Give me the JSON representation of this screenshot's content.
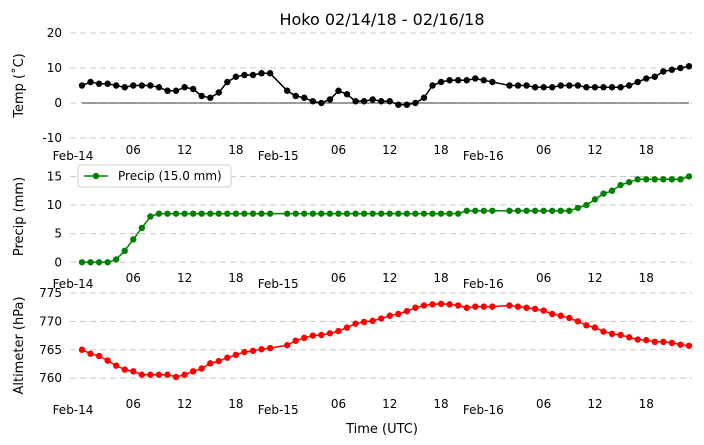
{
  "title": "Hoko 02/14/18 - 02/16/18",
  "xlabel": "Time (UTC)",
  "x_tick_labels": [
    "Feb-14",
    "06",
    "12",
    "18",
    "Feb-15",
    "06",
    "12",
    "18",
    "Feb-16",
    "06",
    "12",
    "18"
  ],
  "chart_data": [
    {
      "type": "line",
      "ylabel": "Temp (˚C)",
      "ylim": [
        -10,
        20
      ],
      "yticks": [
        -10,
        0,
        10,
        20
      ],
      "color": "#000000",
      "grid": "horizontal dashed",
      "zero_line": true,
      "x_hours": [
        0,
        1,
        2,
        3,
        4,
        5,
        6,
        7,
        8,
        9,
        10,
        11,
        12,
        13,
        14,
        15,
        16,
        17,
        18,
        19,
        20,
        21,
        22,
        24,
        25,
        26,
        27,
        28,
        29,
        30,
        31,
        32,
        33,
        34,
        35,
        36,
        37,
        38,
        39,
        40,
        41,
        42,
        43,
        44,
        45,
        46,
        47,
        48,
        50,
        51,
        52,
        53,
        54,
        55,
        56,
        57,
        58,
        59,
        60,
        61,
        62,
        63,
        64,
        65,
        66,
        67,
        68,
        69,
        70,
        71
      ],
      "values": [
        5.0,
        6.0,
        5.5,
        5.5,
        5.0,
        4.5,
        5.0,
        5.0,
        5.0,
        4.5,
        3.5,
        3.5,
        4.5,
        4.0,
        2.0,
        1.5,
        3.0,
        6.0,
        7.5,
        8.0,
        8.0,
        8.5,
        8.5,
        3.5,
        2.0,
        1.5,
        0.5,
        0.0,
        1.0,
        3.5,
        2.5,
        0.5,
        0.5,
        1.0,
        0.5,
        0.5,
        -0.5,
        -0.5,
        0.0,
        1.5,
        5.0,
        6.0,
        6.5,
        6.5,
        6.5,
        7.0,
        6.5,
        6.0,
        5.0,
        5.0,
        5.0,
        4.5,
        4.5,
        4.5,
        5.0,
        5.0,
        5.0,
        4.5,
        4.5,
        4.5,
        4.5,
        4.5,
        5.0,
        6.0,
        7.0,
        7.5,
        9.0,
        9.5,
        10.0,
        10.5
      ]
    },
    {
      "type": "line",
      "ylabel": "Precip (mm)",
      "ylim": [
        -1,
        17
      ],
      "yticks": [
        0,
        5,
        10,
        15
      ],
      "color": "#008000",
      "grid": "horizontal dashed",
      "legend": {
        "label": "Precip (15.0 mm)",
        "placement": "top-left"
      },
      "x_hours": [
        0,
        1,
        2,
        3,
        4,
        5,
        6,
        7,
        8,
        9,
        10,
        11,
        12,
        13,
        14,
        15,
        16,
        17,
        18,
        19,
        20,
        21,
        22,
        24,
        25,
        26,
        27,
        28,
        29,
        30,
        31,
        32,
        33,
        34,
        35,
        36,
        37,
        38,
        39,
        40,
        41,
        42,
        43,
        44,
        45,
        46,
        47,
        48,
        50,
        51,
        52,
        53,
        54,
        55,
        56,
        57,
        58,
        59,
        60,
        61,
        62,
        63,
        64,
        65,
        66,
        67,
        68,
        69,
        70,
        71
      ],
      "values": [
        0.0,
        0.0,
        0.0,
        0.0,
        0.5,
        2.0,
        4.0,
        6.0,
        8.0,
        8.5,
        8.5,
        8.5,
        8.5,
        8.5,
        8.5,
        8.5,
        8.5,
        8.5,
        8.5,
        8.5,
        8.5,
        8.5,
        8.5,
        8.5,
        8.5,
        8.5,
        8.5,
        8.5,
        8.5,
        8.5,
        8.5,
        8.5,
        8.5,
        8.5,
        8.5,
        8.5,
        8.5,
        8.5,
        8.5,
        8.5,
        8.5,
        8.5,
        8.5,
        8.5,
        9.0,
        9.0,
        9.0,
        9.0,
        9.0,
        9.0,
        9.0,
        9.0,
        9.0,
        9.0,
        9.0,
        9.0,
        9.5,
        10.0,
        11.0,
        12.0,
        12.5,
        13.5,
        14.0,
        14.5,
        14.5,
        14.5,
        14.5,
        14.5,
        14.5,
        15.0
      ]
    },
    {
      "type": "line",
      "ylabel": "Altimeter (hPa)",
      "ylim": [
        756.5,
        775
      ],
      "yticks": [
        760,
        765,
        770,
        775
      ],
      "color": "#ff0000",
      "grid": "horizontal dashed",
      "x_hours": [
        0,
        1,
        2,
        3,
        4,
        5,
        6,
        7,
        8,
        9,
        10,
        11,
        12,
        13,
        14,
        15,
        16,
        17,
        18,
        19,
        20,
        21,
        22,
        24,
        25,
        26,
        27,
        28,
        29,
        30,
        31,
        32,
        33,
        34,
        35,
        36,
        37,
        38,
        39,
        40,
        41,
        42,
        43,
        44,
        45,
        46,
        47,
        48,
        50,
        51,
        52,
        53,
        54,
        55,
        56,
        57,
        58,
        59,
        60,
        61,
        62,
        63,
        64,
        65,
        66,
        67,
        68,
        69,
        70,
        71
      ],
      "values": [
        765.0,
        764.3,
        763.9,
        763.1,
        762.2,
        761.5,
        761.2,
        760.6,
        760.6,
        760.6,
        760.6,
        760.2,
        760.6,
        761.2,
        761.7,
        762.6,
        763.0,
        763.6,
        764.1,
        764.6,
        764.8,
        765.1,
        765.3,
        765.8,
        766.6,
        767.1,
        767.5,
        767.6,
        767.9,
        768.3,
        768.9,
        769.6,
        769.9,
        770.1,
        770.5,
        771.0,
        771.3,
        771.8,
        772.4,
        772.8,
        773.0,
        773.1,
        773.0,
        772.8,
        772.4,
        772.6,
        772.6,
        772.6,
        772.8,
        772.6,
        772.4,
        772.2,
        771.9,
        771.3,
        771.0,
        770.6,
        770.0,
        769.3,
        768.9,
        768.2,
        767.8,
        767.6,
        767.2,
        766.8,
        766.7,
        766.4,
        766.4,
        766.2,
        765.9,
        765.7
      ]
    }
  ]
}
